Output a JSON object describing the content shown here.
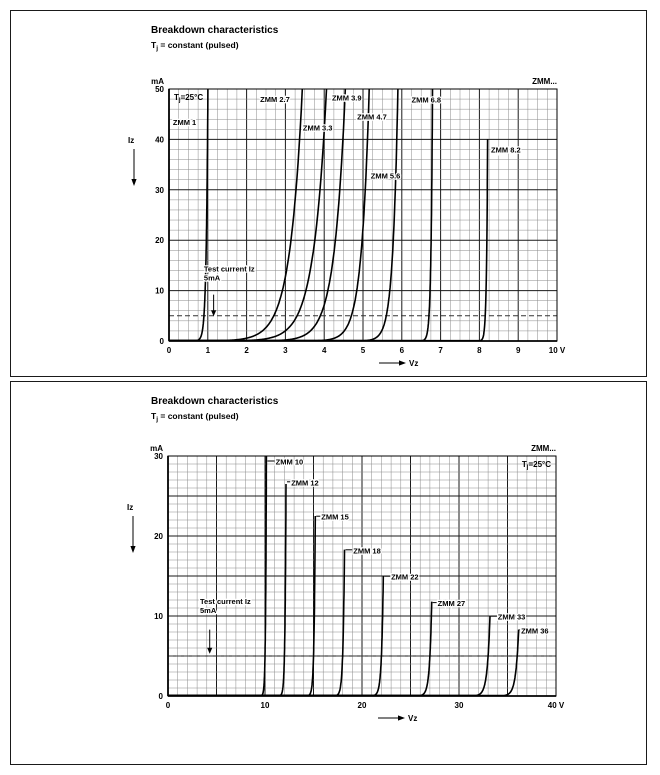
{
  "panels": [
    {
      "title": "Breakdown characteristics",
      "subtitle_pre": "T",
      "subtitle_sub": "j",
      "subtitle_rest": " = constant (pulsed)"
    },
    {
      "title": "Breakdown characteristics",
      "subtitle_pre": "T",
      "subtitle_sub": "j",
      "subtitle_rest": " = constant (pulsed)"
    }
  ],
  "chart_data": [
    {
      "type": "line",
      "title": "Breakdown characteristics",
      "subtitle": "Tj = constant (pulsed)",
      "xlabel": "Vz",
      "ylabel": "Iz",
      "x_unit": "V",
      "y_unit": "mA",
      "xlim": [
        0,
        10
      ],
      "ylim": [
        0,
        50
      ],
      "grid": true,
      "legend": "none",
      "x_grid": {
        "minor": 0.25,
        "major": 1
      },
      "y_grid": {
        "minor": 2,
        "major": 10
      },
      "x_ticks": [
        {
          "v": 0,
          "label": "0"
        },
        {
          "v": 1,
          "label": "1"
        },
        {
          "v": 2,
          "label": "2"
        },
        {
          "v": 3,
          "label": "3"
        },
        {
          "v": 4,
          "label": "4"
        },
        {
          "v": 5,
          "label": "5"
        },
        {
          "v": 6,
          "label": "6"
        },
        {
          "v": 7,
          "label": "7"
        },
        {
          "v": 8,
          "label": "8"
        },
        {
          "v": 9,
          "label": "9"
        },
        {
          "v": 10,
          "label": "10 V"
        }
      ],
      "y_ticks": [
        {
          "v": 0,
          "label": "0"
        },
        {
          "v": 10,
          "label": "10"
        },
        {
          "v": 20,
          "label": "20"
        },
        {
          "v": 30,
          "label": "30"
        },
        {
          "v": 40,
          "label": "40"
        },
        {
          "v": 50,
          "label": "50"
        }
      ],
      "corner_label": "ZMM...",
      "temp_label": "Tj=25°C",
      "temp_label_pos": "top-left",
      "test_current": {
        "lines": [
          "Test current Iz",
          "5mA"
        ],
        "level_mA": 5,
        "text_x": 0.9,
        "text_y": 13.8,
        "arrow_x": 1.15,
        "arrow_y1": 9.2,
        "arrow_y2": 5.9
      },
      "series": [
        {
          "name": "ZMM 1",
          "vz_at_5mA": 0.9,
          "knee_k": 0.045,
          "i_max": 50,
          "label_x": 0.1,
          "label_y": 43,
          "leader": false
        },
        {
          "name": "ZMM 2.7",
          "vz_at_5mA": 2.7,
          "knee_k": 0.32,
          "i_max": 50,
          "label_x": 2.35,
          "label_y": 47.5,
          "leader": false
        },
        {
          "name": "ZMM 3.3",
          "vz_at_5mA": 3.3,
          "knee_k": 0.33,
          "i_max": 50,
          "label_x": 3.45,
          "label_y": 41.9,
          "leader": false
        },
        {
          "name": "ZMM 3.9",
          "vz_at_5mA": 3.9,
          "knee_k": 0.28,
          "i_max": 50,
          "label_x": 4.2,
          "label_y": 47.8,
          "leader": false
        },
        {
          "name": "ZMM 4.7",
          "vz_at_5mA": 4.7,
          "knee_k": 0.2,
          "i_max": 50,
          "label_x": 4.85,
          "label_y": 44,
          "leader": false
        },
        {
          "name": "ZMM 5.6",
          "vz_at_5mA": 5.6,
          "knee_k": 0.13,
          "i_max": 50,
          "label_x": 5.2,
          "label_y": 32.3,
          "leader": false
        },
        {
          "name": "ZMM 6.8",
          "vz_at_5mA": 6.7,
          "knee_k": 0.04,
          "i_max": 50,
          "label_x": 6.25,
          "label_y": 47.4,
          "leader": false
        },
        {
          "name": "ZMM 8.2",
          "vz_at_5mA": 8.15,
          "knee_k": 0.03,
          "i_max": 40,
          "label_x": 8.3,
          "label_y": 37.5,
          "leader": false
        }
      ]
    },
    {
      "type": "line",
      "title": "Breakdown characteristics",
      "subtitle": "Tj = constant (pulsed)",
      "xlabel": "Vz",
      "ylabel": "Iz",
      "x_unit": "V",
      "y_unit": "mA",
      "xlim": [
        0,
        40
      ],
      "ylim": [
        0,
        30
      ],
      "grid": true,
      "legend": "none",
      "x_grid": {
        "minor": 1,
        "major": 5
      },
      "y_grid": {
        "minor": 1,
        "major": 5
      },
      "x_ticks": [
        {
          "v": 0,
          "label": "0"
        },
        {
          "v": 10,
          "label": "10"
        },
        {
          "v": 20,
          "label": "20"
        },
        {
          "v": 30,
          "label": "30"
        },
        {
          "v": 40,
          "label": "40 V"
        }
      ],
      "y_ticks": [
        {
          "v": 0,
          "label": "0"
        },
        {
          "v": 10,
          "label": "10"
        },
        {
          "v": 20,
          "label": "20"
        },
        {
          "v": 30,
          "label": "30"
        }
      ],
      "corner_label": "ZMM...",
      "temp_label": "Tj=25°C",
      "temp_label_pos": "top-right",
      "test_current": {
        "lines": [
          "Test current Iz",
          "5mA"
        ],
        "level_mA": 5,
        "text_x": 3.3,
        "text_y": 11.5,
        "arrow_x": 4.3,
        "arrow_y1": 8.3,
        "arrow_y2": 5.9
      },
      "series": [
        {
          "name": "ZMM 10",
          "vz_at_5mA": 10,
          "knee_k": 0.08,
          "i_max": 30,
          "label_x": 11.1,
          "label_y": 29,
          "leader": true
        },
        {
          "name": "ZMM 12",
          "vz_at_5mA": 12,
          "knee_k": 0.1,
          "i_max": 26.5,
          "label_x": 12.7,
          "label_y": 26.4,
          "leader": true
        },
        {
          "name": "ZMM 15",
          "vz_at_5mA": 15,
          "knee_k": 0.12,
          "i_max": 22.5,
          "label_x": 15.8,
          "label_y": 22.1,
          "leader": true
        },
        {
          "name": "ZMM 18",
          "vz_at_5mA": 18,
          "knee_k": 0.15,
          "i_max": 18.3,
          "label_x": 19.1,
          "label_y": 17.9,
          "leader": true
        },
        {
          "name": "ZMM 22",
          "vz_at_5mA": 22,
          "knee_k": 0.18,
          "i_max": 15,
          "label_x": 23,
          "label_y": 14.6,
          "leader": true
        },
        {
          "name": "ZMM 27",
          "vz_at_5mA": 27,
          "knee_k": 0.22,
          "i_max": 11.8,
          "label_x": 27.8,
          "label_y": 11.3,
          "leader": true
        },
        {
          "name": "ZMM 33",
          "vz_at_5mA": 33,
          "knee_k": 0.28,
          "i_max": 10,
          "label_x": 34,
          "label_y": 9.6,
          "leader": true
        },
        {
          "name": "ZMM 36",
          "vz_at_5mA": 36,
          "knee_k": 0.3,
          "i_max": 8.3,
          "label_x": 36.4,
          "label_y": 7.9,
          "leader": true
        }
      ]
    }
  ]
}
